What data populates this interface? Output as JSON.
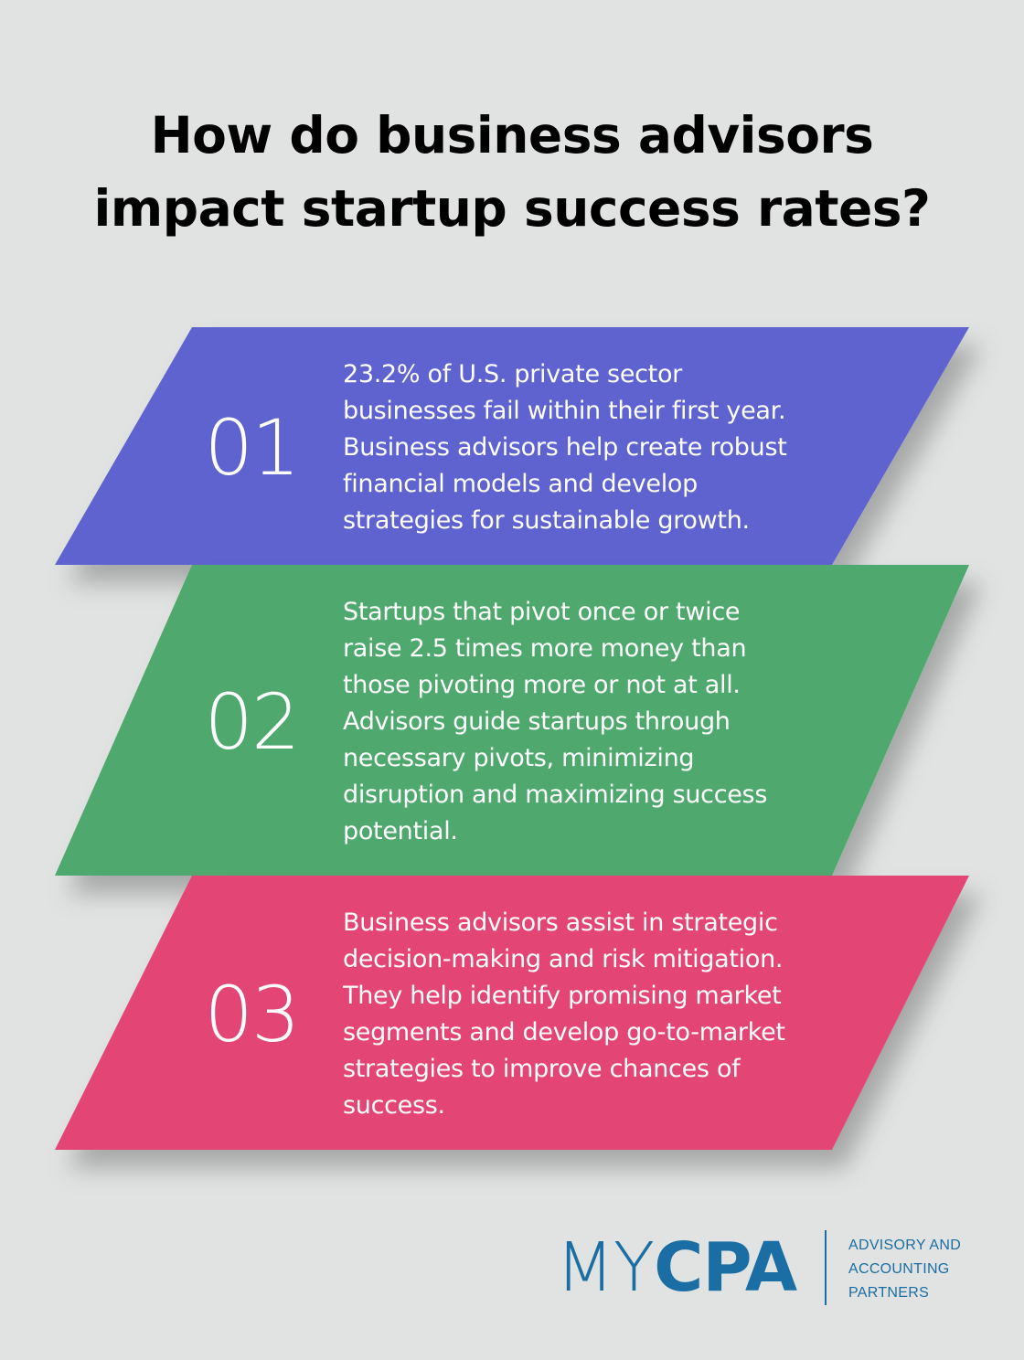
{
  "title": {
    "line1": "How do business advisors",
    "line2": "impact startup success rates?"
  },
  "cards": [
    {
      "number": "01",
      "color": "#5f63d0",
      "lines": [
        "23.2% of U.S. private sector",
        "businesses fail within their first year.",
        "Business advisors help create robust",
        "financial models and develop",
        "strategies for sustainable growth."
      ]
    },
    {
      "number": "02",
      "color": "#4fa96e",
      "lines": [
        "Startups that pivot once or twice",
        "raise 2.5 times more money than",
        "those pivoting more or not at all.",
        "Advisors guide startups through",
        "necessary pivots, minimizing",
        "disruption and maximizing success",
        "potential."
      ]
    },
    {
      "number": "03",
      "color": "#e34475",
      "lines": [
        "Business advisors assist in strategic",
        "decision-making and risk mitigation.",
        "They help identify promising market",
        "segments and develop go-to-market",
        "strategies to improve chances of",
        "success."
      ]
    }
  ],
  "logo": {
    "wordmark_light": "MY",
    "wordmark_bold": "CPA",
    "tagline": [
      "ADVISORY AND",
      "ACCOUNTING",
      "PARTNERS"
    ],
    "color": "#1a6ea3"
  },
  "colors": {
    "background": "#e1e3e2",
    "text_on_card": "#ffffff",
    "title": "#000000"
  }
}
